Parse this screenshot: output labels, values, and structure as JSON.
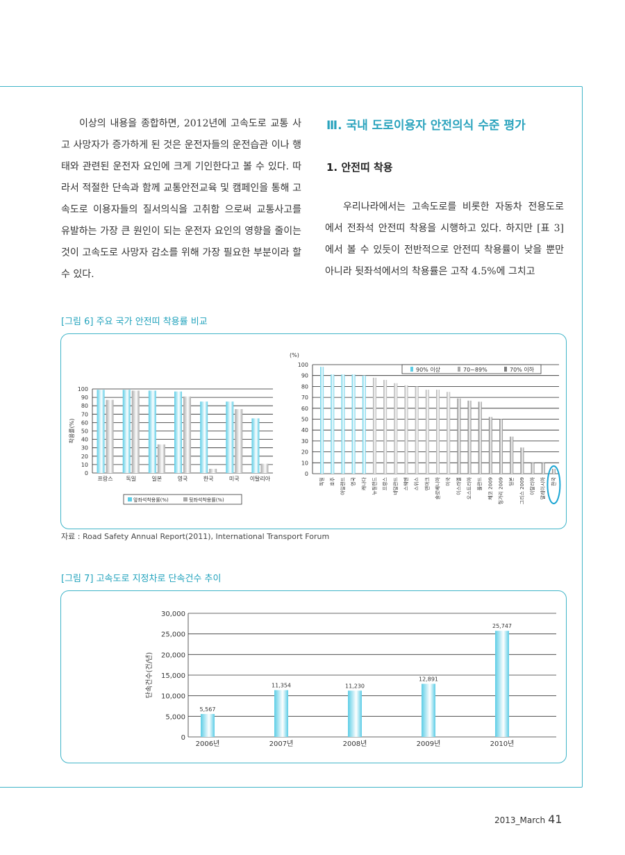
{
  "left_column": {
    "lines": [
      "이상의 내용을 종합하면, 2012년에 고속도로 교통",
      "사고 사망자가 증가하게 된 것은 운전자들의 운전습관",
      "이나 행태와 관련된 운전자 요인에 크게 기인한다고 볼",
      "수 있다. 따라서 적절한 단속과 함께 교통안전교육 및",
      "캠페인을 통해 고속도로 이용자들의 질서의식을 고취함",
      "으로써 교통사고를 유발하는 가장 큰 원인이 되는 운전자",
      "요인의 영향을 줄이는 것이 고속도로 사망자 감소를 위해",
      "가장 필요한 부분이라 할 수 있다."
    ]
  },
  "section_heading": "Ⅲ. 국내 도로이용자 안전의식 수준 평가",
  "sub_heading": "1. 안전띠 착용",
  "right_column": {
    "lines": [
      "우리나라에서는 고속도로를 비롯한 자동차 전용도로",
      "에서 전좌석 안전띠 착용을 시행하고 있다. 하지만 [표 3]",
      "에서 볼 수 있듯이 전반적으로 안전띠 착용률이 낮을",
      "뿐만 아니라 뒷좌석에서의 착용률은 고작 4.5%에 그치고"
    ]
  },
  "figure6": {
    "caption": "[그림 6] 주요 국가 안전띠 착용률 비교",
    "source": "자료 : Road Safety Annual Report(2011), International Transport Forum"
  },
  "figure7": {
    "caption": "[그림 7] 고속도로 지정차로 단속건수 추이"
  },
  "footer": {
    "issue": "2013_March",
    "page": "41"
  },
  "colors": {
    "accent": "#2aa3bd",
    "bar_blue": "#5ccde6",
    "bar_gray": "#a9a9a9",
    "bar_dark": "#7c7c7c"
  },
  "chart_data": [
    {
      "type": "bar",
      "ylabel": "착용률(%)",
      "ylim": [
        0,
        100
      ],
      "yticks": [
        0,
        10,
        20,
        30,
        40,
        50,
        60,
        70,
        80,
        90,
        100
      ],
      "categories": [
        "프랑스",
        "독일",
        "일본",
        "영국",
        "한국",
        "미국",
        "이탈리아"
      ],
      "series": [
        {
          "name": "앞좌석착용률(%)",
          "values": [
            99,
            99,
            98,
            97,
            85,
            85,
            65
          ]
        },
        {
          "name": "뒷좌석착용률(%)",
          "values": [
            87,
            98,
            34,
            91,
            5,
            76,
            11
          ]
        }
      ],
      "legend": "bottom"
    },
    {
      "type": "bar",
      "ylabel": "(%)",
      "ylim": [
        0,
        100
      ],
      "yticks": [
        0,
        10,
        20,
        30,
        40,
        50,
        60,
        70,
        80,
        90,
        100
      ],
      "categories": [
        "독일",
        "호주",
        "아일랜드",
        "영국",
        "캐나다",
        "뉴질랜드",
        "프랑스",
        "네덜란드",
        "스웨덴",
        "스위스",
        "덴마크",
        "슬로베니아",
        "미국",
        "이스라엘",
        "오스트리아",
        "폴란드",
        "체코 2009",
        "헝가리 2009",
        "일본",
        "그리스 2009",
        "이탈리아",
        "말레이시아",
        "한국"
      ],
      "values": [
        98,
        91,
        91,
        91,
        90,
        88,
        86,
        83,
        81,
        80,
        77,
        77,
        75,
        69,
        67,
        66,
        52,
        50,
        34,
        24,
        10,
        10,
        4.5
      ],
      "legend_items": [
        "90% 이상",
        "70~89%",
        "70% 이하"
      ],
      "highlight": "한국",
      "legend": "top-right"
    },
    {
      "type": "bar",
      "ylabel": "단속건수(건/년)",
      "ylim": [
        0,
        30000
      ],
      "yticks": [
        "0",
        "5,000",
        "10,000",
        "15,000",
        "20,000",
        "25,000",
        "30,000"
      ],
      "categories": [
        "2006년",
        "2007년",
        "2008년",
        "2009년",
        "2010년"
      ],
      "values": [
        5567,
        11354,
        11230,
        12891,
        25747
      ],
      "value_labels": [
        "5,567",
        "11,354",
        "11,230",
        "12,891",
        "25,747"
      ]
    }
  ]
}
